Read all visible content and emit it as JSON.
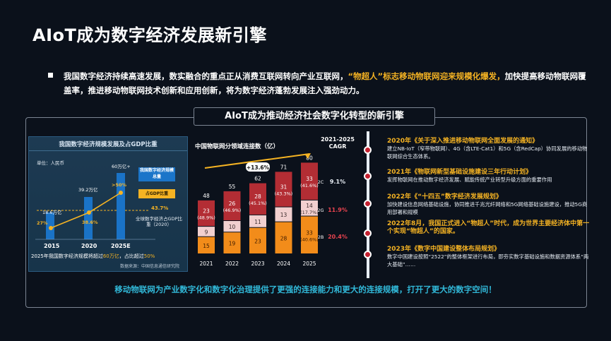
{
  "title": "AIoT成为数字经济发展新引擎",
  "bullet": {
    "part1": "我国数字经济持续高速发展，数实融合的重点正从消费互联网转向产业互联网，",
    "highlight": "“物超人”标志移动物联网迎来规模化爆发，",
    "part2": "加快提高移动物联网覆盖率，推进移动物联网技术创新和应用创新，将为数字经济蓬勃发展注入强劲动力。"
  },
  "frame_title": "AIoT成为推动经济社会数字化转型的新引擎",
  "left_panel": {
    "title": "我国数字经济规模发展及占GDP比重",
    "unit": "单位：人民币",
    "legend_scale": "我国数字经济规模总量",
    "legend_gdp": "占GDP比重",
    "global_pct": "43.7%",
    "global_label": "全球数字经济占GDP比重（2020）",
    "bars": [
      {
        "year": "2015",
        "value_label": "18.6万亿",
        "pct": "27%"
      },
      {
        "year": "2020",
        "value_label": "39.2万亿",
        "pct": "38.6%"
      },
      {
        "year": "2025E",
        "value_label": "60万亿+",
        "pct": ">50%"
      }
    ],
    "footnote_a": "2025年我国数字经济规模将超过",
    "footnote_hl1": "60万亿",
    "footnote_b": "，占比超过",
    "footnote_hl2": "50%",
    "source": "数据来源：中国信息通信研究院"
  },
  "chart_data": {
    "type": "bar",
    "title": "中国物联网分领域连接数（亿）",
    "categories": [
      "2021",
      "2022",
      "2023",
      "2024",
      "2025"
    ],
    "totals": [
      48,
      55,
      62,
      71,
      80
    ],
    "cagr_total": "+13.6%",
    "series": [
      {
        "name": "2B",
        "values": [
          15,
          19,
          23,
          28,
          33
        ],
        "share_2025": "(40.6%)",
        "cagr": "20.4%",
        "color": "#f28c1a"
      },
      {
        "name": "2G",
        "values": [
          9,
          10,
          11,
          13,
          14
        ],
        "share_2025": "(17.7%)",
        "cagr": "11.9%",
        "color": "#f2d0cf"
      },
      {
        "name": "2C",
        "values": [
          23,
          26,
          28,
          31,
          33
        ],
        "shares": [
          "(48.9%)",
          "(46.9%)",
          "(45.1%)",
          "(43.3%)",
          "(41.6%)"
        ],
        "cagr": "9.1%",
        "color": "#b32d34"
      }
    ],
    "cagr_header": "2021-2025 CAGR"
  },
  "timeline": [
    {
      "year": "2020年",
      "title": "《关于深入推进移动物联网全面发展的通知》",
      "desc": "建立NB-IoT（窄带物联网）、4G（含LTE-Cat1）和5G（含RedCap）协同发展的移动物联网综合生态体系。"
    },
    {
      "year": "2021年",
      "title": "《物联网新型基础设施建设三年行动计划》",
      "desc": "发挥物联网在推动数字经济发展、赋能传统产业转型升级方面的重要作用"
    },
    {
      "year": "2022年",
      "title": "《“十四五”数字经济发展规划》",
      "desc": "加快建设信息网络基础设施，协同推进千兆光纤网络和5G网络基础设施建设，推动5G商用部署和规模"
    },
    {
      "year": "2022年8月，",
      "title": "我国正式进入“物超人”时代，成为世界主要经济体中第一个实现“物超人”的国家。",
      "desc": ""
    },
    {
      "year": "2023年",
      "title": "《数字中国建设整体布局规划》",
      "desc": "数字中国建设按照“2522”的整体框架进行布局，即夯实数字基础设施和数据资源体系“两大基础”……"
    }
  ],
  "bottom_text": "移动物联网为产业数字化和数字化治理提供了更强的连接能力和更大的连接规模，打开了更大的数字空间！"
}
